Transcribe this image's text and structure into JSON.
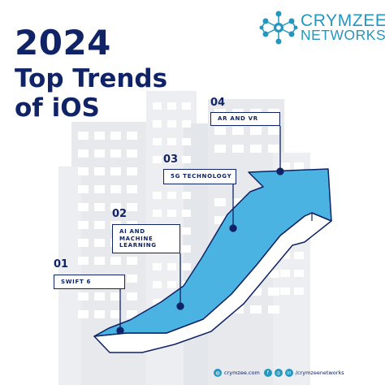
{
  "title": {
    "year": "2024",
    "line1": "Top Trends",
    "line2": "of iOS"
  },
  "brand": {
    "name": "CRYMZEE",
    "sub": "NETWORKS",
    "icon": "network-nodes-icon"
  },
  "trends": [
    {
      "number": "01",
      "label": "SWIFT 6"
    },
    {
      "number": "02",
      "label": "AI AND MACHINE LEARNING"
    },
    {
      "number": "03",
      "label": "5G TECHNOLOGY"
    },
    {
      "number": "04",
      "label": "AR AND VR"
    }
  ],
  "footer": {
    "website": "crymzee.com",
    "social": "/crymzeenetworks",
    "website_icon": "globe-icon",
    "social_icons": [
      "facebook-icon",
      "instagram-icon",
      "linkedin-icon"
    ]
  },
  "colors": {
    "navy": "#0f2366",
    "arrow_blue": "#4ab3e2",
    "brand_blue": "#2596be",
    "building_gray": "#e7e9ec"
  }
}
